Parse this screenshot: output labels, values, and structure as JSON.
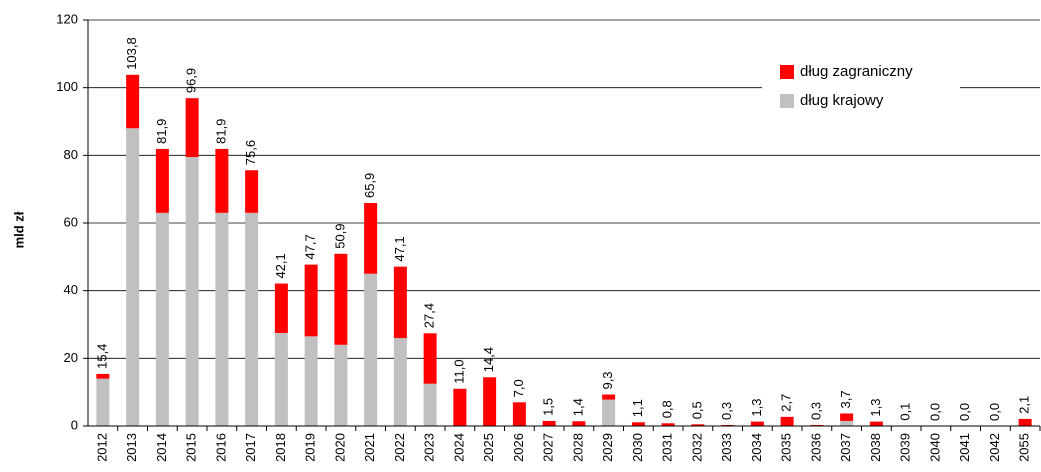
{
  "chart_data": {
    "type": "stacked-bar",
    "y_label": "mld zł",
    "categories": [
      "2012",
      "2013",
      "2014",
      "2015",
      "2016",
      "2017",
      "2018",
      "2019",
      "2020",
      "2021",
      "2022",
      "2023",
      "2024",
      "2025",
      "2026",
      "2027",
      "2028",
      "2029",
      "2030",
      "2031",
      "2032",
      "2033",
      "2034",
      "2035",
      "2036",
      "2037",
      "2038",
      "2039",
      "2040",
      "2041",
      "2042",
      "2055"
    ],
    "series": [
      {
        "name": "dług krajowy",
        "color": "#c0c0c0",
        "values": [
          14,
          88,
          63,
          79.5,
          63,
          63,
          27.5,
          26.5,
          24,
          45,
          26,
          12.5,
          0,
          0,
          0,
          0,
          0,
          7.8,
          0,
          0,
          0,
          0,
          0,
          0,
          0,
          1.5,
          0,
          0,
          0,
          0,
          0,
          0
        ]
      },
      {
        "name": "dług zagraniczny",
        "color": "#ff0000",
        "values": [
          1.4,
          15.8,
          18.9,
          17.4,
          18.9,
          12.6,
          14.6,
          21.2,
          26.9,
          20.9,
          21.1,
          14.9,
          11.0,
          14.4,
          7.0,
          1.5,
          1.4,
          1.5,
          1.1,
          0.8,
          0.5,
          0.3,
          1.3,
          2.7,
          0.3,
          2.2,
          1.3,
          0.1,
          0.0,
          0.0,
          0.0,
          2.1
        ]
      }
    ],
    "totals": [
      15.4,
      103.8,
      81.9,
      96.9,
      81.9,
      75.6,
      42.1,
      47.7,
      50.9,
      65.9,
      47.1,
      27.4,
      11.0,
      14.4,
      7.0,
      1.5,
      1.4,
      9.3,
      1.1,
      0.8,
      0.5,
      0.3,
      1.3,
      2.7,
      0.3,
      3.7,
      1.3,
      0.1,
      0.0,
      0.0,
      0.0,
      2.1
    ],
    "total_labels": [
      "15,4",
      "103,8",
      "81,9",
      "96,9",
      "81,9",
      "75,6",
      "42,1",
      "47,7",
      "50,9",
      "65,9",
      "47,1",
      "27,4",
      "11,0",
      "14,4",
      "7,0",
      "1,5",
      "1,4",
      "9,3",
      "1,1",
      "0,8",
      "0,5",
      "0,3",
      "1,3",
      "2,7",
      "0,3",
      "3,7",
      "1,3",
      "0,1",
      "0,0",
      "0,0",
      "0,0",
      "2,1"
    ],
    "ylim": [
      0,
      120
    ],
    "yticks": [
      0,
      20,
      40,
      60,
      80,
      100,
      120
    ],
    "grid": true,
    "legend": "top-right"
  }
}
